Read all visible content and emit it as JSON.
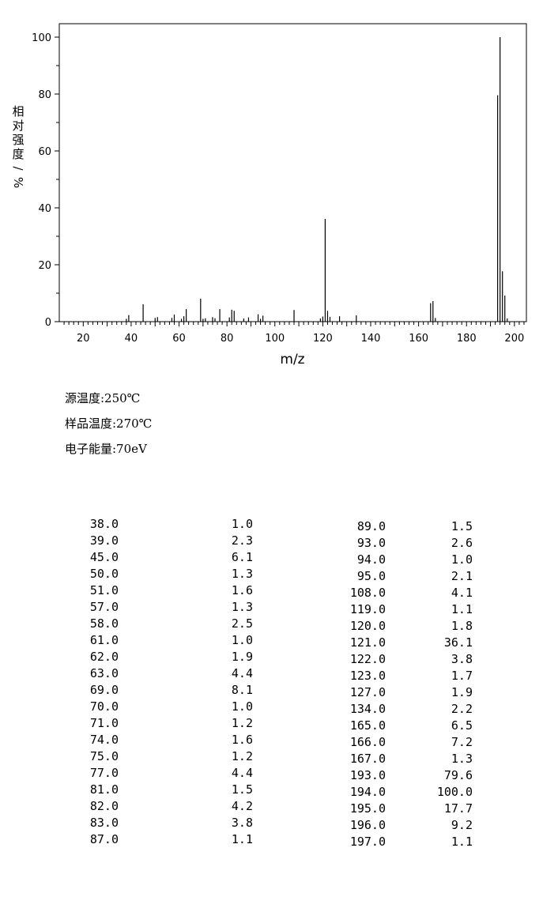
{
  "chart_data": {
    "type": "bar",
    "title": "",
    "xlabel": "m/z",
    "ylabel": "相对强度/%",
    "xlim": [
      10,
      205
    ],
    "ylim": [
      0,
      105
    ],
    "x_ticks": [
      20,
      40,
      60,
      80,
      100,
      120,
      140,
      160,
      180,
      200
    ],
    "y_ticks": [
      0,
      20,
      40,
      60,
      80,
      100
    ],
    "grid": false,
    "series": [
      {
        "x": [
          38,
          39,
          45,
          50,
          51,
          57,
          58,
          61,
          62,
          63,
          69,
          70,
          71,
          74,
          75,
          77,
          81,
          82,
          83,
          87,
          89,
          93,
          94,
          95,
          108,
          119,
          120,
          121,
          122,
          123,
          127,
          134,
          165,
          166,
          167,
          193,
          194,
          195,
          196,
          197
        ],
        "values": [
          1.0,
          2.3,
          6.1,
          1.3,
          1.6,
          1.3,
          2.5,
          1.0,
          1.9,
          4.4,
          8.1,
          1.0,
          1.2,
          1.6,
          1.2,
          4.4,
          1.5,
          4.2,
          3.8,
          1.1,
          1.5,
          2.6,
          1.0,
          2.1,
          4.1,
          1.1,
          1.8,
          36.1,
          3.8,
          1.7,
          1.9,
          2.2,
          6.5,
          7.2,
          1.3,
          79.6,
          100.0,
          17.7,
          9.2,
          1.1
        ]
      }
    ]
  },
  "conditions": {
    "source_temp": "源温度:250℃",
    "sample_temp": "样品温度:270℃",
    "electron_energy": "电子能量:70eV"
  },
  "peak_table": {
    "left": [
      [
        "38.0",
        "1.0"
      ],
      [
        "39.0",
        "2.3"
      ],
      [
        "45.0",
        "6.1"
      ],
      [
        "50.0",
        "1.3"
      ],
      [
        "51.0",
        "1.6"
      ],
      [
        "57.0",
        "1.3"
      ],
      [
        "58.0",
        "2.5"
      ],
      [
        "61.0",
        "1.0"
      ],
      [
        "62.0",
        "1.9"
      ],
      [
        "63.0",
        "4.4"
      ],
      [
        "69.0",
        "8.1"
      ],
      [
        "70.0",
        "1.0"
      ],
      [
        "71.0",
        "1.2"
      ],
      [
        "74.0",
        "1.6"
      ],
      [
        "75.0",
        "1.2"
      ],
      [
        "77.0",
        "4.4"
      ],
      [
        "81.0",
        "1.5"
      ],
      [
        "82.0",
        "4.2"
      ],
      [
        "83.0",
        "3.8"
      ],
      [
        "87.0",
        "1.1"
      ]
    ],
    "right": [
      [
        "89.0",
        "1.5"
      ],
      [
        "93.0",
        "2.6"
      ],
      [
        "94.0",
        "1.0"
      ],
      [
        "95.0",
        "2.1"
      ],
      [
        "108.0",
        "4.1"
      ],
      [
        "119.0",
        "1.1"
      ],
      [
        "120.0",
        "1.8"
      ],
      [
        "121.0",
        "36.1"
      ],
      [
        "122.0",
        "3.8"
      ],
      [
        "123.0",
        "1.7"
      ],
      [
        "127.0",
        "1.9"
      ],
      [
        "134.0",
        "2.2"
      ],
      [
        "165.0",
        "6.5"
      ],
      [
        "166.0",
        "7.2"
      ],
      [
        "167.0",
        "1.3"
      ],
      [
        "193.0",
        "79.6"
      ],
      [
        "194.0",
        "100.0"
      ],
      [
        "195.0",
        "17.7"
      ],
      [
        "196.0",
        "9.2"
      ],
      [
        "197.0",
        "1.1"
      ]
    ]
  }
}
